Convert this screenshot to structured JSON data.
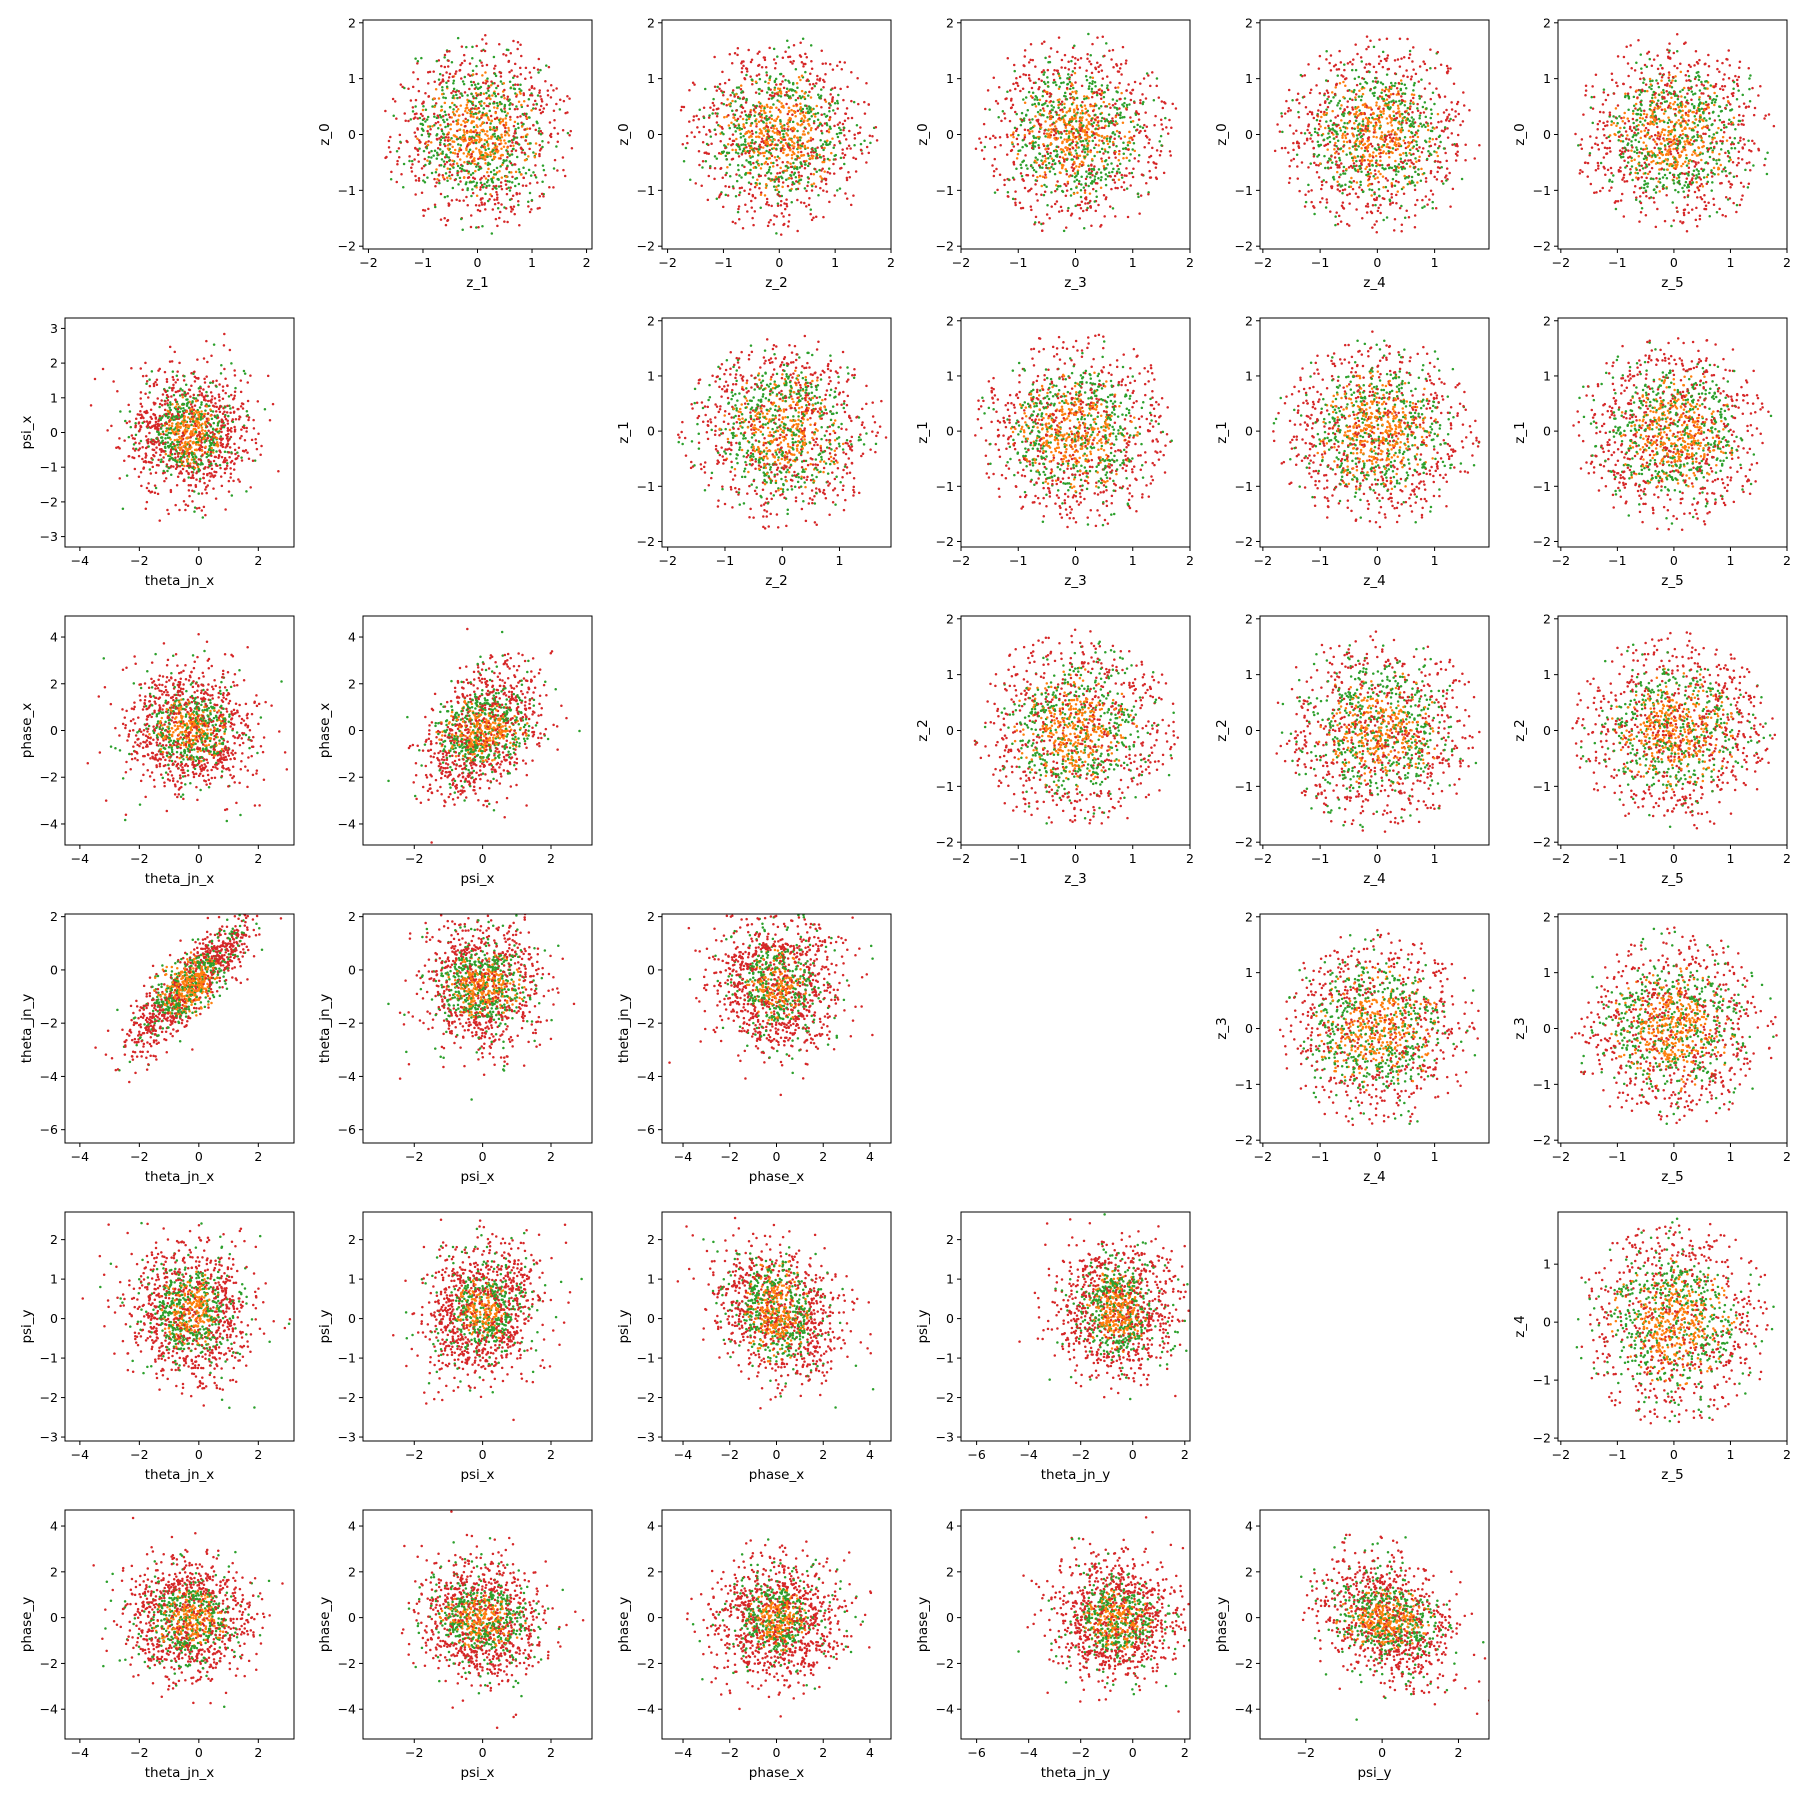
{
  "figure": {
    "colors": {
      "inner": "#ff7f0e",
      "middle": "#2ca02c",
      "outer": "#d62728"
    }
  },
  "chart_data": [
    {
      "type": "scatter",
      "row": 0,
      "col": 1,
      "xlabel": "z_1",
      "ylabel": "z_0",
      "xlim": [
        -2.1,
        2.1
      ],
      "ylim": [
        -2.05,
        2.05
      ],
      "xticks": [
        -2,
        -1,
        0,
        1,
        2
      ],
      "yticks": [
        -2,
        -1,
        0,
        1,
        2
      ],
      "dist": "corner",
      "spread": [
        0.75,
        0.75
      ],
      "rho": 0,
      "seed": 11
    },
    {
      "type": "scatter",
      "row": 0,
      "col": 2,
      "xlabel": "z_2",
      "ylabel": "z_0",
      "xlim": [
        -2.1,
        2.0
      ],
      "ylim": [
        -2.05,
        2.05
      ],
      "xticks": [
        -2,
        -1,
        0,
        1,
        2
      ],
      "yticks": [
        -2,
        -1,
        0,
        1,
        2
      ],
      "dist": "corner",
      "spread": [
        0.75,
        0.75
      ],
      "rho": 0,
      "seed": 12
    },
    {
      "type": "scatter",
      "row": 0,
      "col": 3,
      "xlabel": "z_3",
      "ylabel": "z_0",
      "xlim": [
        -2.0,
        2.0
      ],
      "ylim": [
        -2.05,
        2.05
      ],
      "xticks": [
        -2,
        -1,
        0,
        1,
        2
      ],
      "yticks": [
        -2,
        -1,
        0,
        1,
        2
      ],
      "dist": "corner",
      "spread": [
        0.75,
        0.75
      ],
      "rho": 0,
      "seed": 13
    },
    {
      "type": "scatter",
      "row": 0,
      "col": 4,
      "xlabel": "z_4",
      "ylabel": "z_0",
      "xlim": [
        -2.05,
        1.95
      ],
      "ylim": [
        -2.05,
        2.05
      ],
      "xticks": [
        -2,
        -1,
        0,
        1
      ],
      "yticks": [
        -2,
        -1,
        0,
        1,
        2
      ],
      "dist": "corner",
      "spread": [
        0.75,
        0.75
      ],
      "rho": 0,
      "seed": 14
    },
    {
      "type": "scatter",
      "row": 0,
      "col": 5,
      "xlabel": "z_5",
      "ylabel": "z_0",
      "xlim": [
        -2.05,
        2.0
      ],
      "ylim": [
        -2.05,
        2.05
      ],
      "xticks": [
        -2,
        -1,
        0,
        1,
        2
      ],
      "yticks": [
        -2,
        -1,
        0,
        1,
        2
      ],
      "dist": "corner",
      "spread": [
        0.75,
        0.75
      ],
      "rho": 0,
      "seed": 15
    },
    {
      "type": "scatter",
      "row": 1,
      "col": 0,
      "xlabel": "theta_jn_x",
      "ylabel": "psi_x",
      "xlim": [
        -4.5,
        3.2
      ],
      "ylim": [
        -3.3,
        3.3
      ],
      "xticks": [
        -4,
        -2,
        0,
        2
      ],
      "yticks": [
        -3,
        -2,
        -1,
        0,
        1,
        2,
        3
      ],
      "dist": "gauss",
      "spread": [
        1.0,
        0.85
      ],
      "rho": 0,
      "mean": [
        -0.3,
        0
      ],
      "seed": 21
    },
    {
      "type": "scatter",
      "row": 1,
      "col": 2,
      "xlabel": "z_2",
      "ylabel": "z_1",
      "xlim": [
        -2.1,
        1.9
      ],
      "ylim": [
        -2.1,
        2.05
      ],
      "xticks": [
        -2,
        -1,
        0,
        1
      ],
      "yticks": [
        -2,
        -1,
        0,
        1,
        2
      ],
      "dist": "corner",
      "spread": [
        0.75,
        0.75
      ],
      "rho": 0,
      "seed": 22
    },
    {
      "type": "scatter",
      "row": 1,
      "col": 3,
      "xlabel": "z_3",
      "ylabel": "z_1",
      "xlim": [
        -2.0,
        2.0
      ],
      "ylim": [
        -2.1,
        2.05
      ],
      "xticks": [
        -2,
        -1,
        0,
        1,
        2
      ],
      "yticks": [
        -2,
        -1,
        0,
        1,
        2
      ],
      "dist": "corner",
      "spread": [
        0.75,
        0.75
      ],
      "rho": 0,
      "seed": 23
    },
    {
      "type": "scatter",
      "row": 1,
      "col": 4,
      "xlabel": "z_4",
      "ylabel": "z_1",
      "xlim": [
        -2.05,
        1.95
      ],
      "ylim": [
        -2.1,
        2.05
      ],
      "xticks": [
        -2,
        -1,
        0,
        1
      ],
      "yticks": [
        -2,
        -1,
        0,
        1,
        2
      ],
      "dist": "corner",
      "spread": [
        0.75,
        0.75
      ],
      "rho": 0,
      "seed": 24
    },
    {
      "type": "scatter",
      "row": 1,
      "col": 5,
      "xlabel": "z_5",
      "ylabel": "z_1",
      "xlim": [
        -2.05,
        2.0
      ],
      "ylim": [
        -2.1,
        2.05
      ],
      "xticks": [
        -2,
        -1,
        0,
        1,
        2
      ],
      "yticks": [
        -2,
        -1,
        0,
        1,
        2
      ],
      "dist": "corner",
      "spread": [
        0.75,
        0.75
      ],
      "rho": 0,
      "seed": 25
    },
    {
      "type": "scatter",
      "row": 2,
      "col": 0,
      "xlabel": "theta_jn_x",
      "ylabel": "phase_x",
      "xlim": [
        -4.5,
        3.2
      ],
      "ylim": [
        -4.9,
        4.9
      ],
      "xticks": [
        -4,
        -2,
        0,
        2
      ],
      "yticks": [
        -4,
        -2,
        0,
        2,
        4
      ],
      "dist": "gauss",
      "spread": [
        1.0,
        1.3
      ],
      "rho": 0,
      "mean": [
        -0.3,
        0
      ],
      "seed": 31
    },
    {
      "type": "scatter",
      "row": 2,
      "col": 1,
      "xlabel": "psi_x",
      "ylabel": "phase_x",
      "xlim": [
        -3.5,
        3.2
      ],
      "ylim": [
        -4.9,
        4.9
      ],
      "xticks": [
        -2,
        0,
        2
      ],
      "yticks": [
        -4,
        -2,
        0,
        2,
        4
      ],
      "dist": "gauss",
      "spread": [
        0.8,
        1.3
      ],
      "rho": 0.35,
      "mean": [
        0,
        0
      ],
      "seed": 32
    },
    {
      "type": "scatter",
      "row": 2,
      "col": 3,
      "xlabel": "z_3",
      "ylabel": "z_2",
      "xlim": [
        -2.0,
        2.0
      ],
      "ylim": [
        -2.05,
        2.05
      ],
      "xticks": [
        -2,
        -1,
        0,
        1,
        2
      ],
      "yticks": [
        -2,
        -1,
        0,
        1,
        2
      ],
      "dist": "corner",
      "spread": [
        0.75,
        0.75
      ],
      "rho": 0,
      "seed": 33
    },
    {
      "type": "scatter",
      "row": 2,
      "col": 4,
      "xlabel": "z_4",
      "ylabel": "z_2",
      "xlim": [
        -2.05,
        1.95
      ],
      "ylim": [
        -2.05,
        2.05
      ],
      "xticks": [
        -2,
        -1,
        0,
        1
      ],
      "yticks": [
        -2,
        -1,
        0,
        1,
        2
      ],
      "dist": "corner",
      "spread": [
        0.75,
        0.75
      ],
      "rho": 0,
      "seed": 34
    },
    {
      "type": "scatter",
      "row": 2,
      "col": 5,
      "xlabel": "z_5",
      "ylabel": "z_2",
      "xlim": [
        -2.05,
        2.0
      ],
      "ylim": [
        -2.05,
        2.05
      ],
      "xticks": [
        -2,
        -1,
        0,
        1,
        2
      ],
      "yticks": [
        -2,
        -1,
        0,
        1,
        2
      ],
      "dist": "corner",
      "spread": [
        0.75,
        0.75
      ],
      "rho": 0,
      "seed": 35
    },
    {
      "type": "scatter",
      "row": 3,
      "col": 0,
      "xlabel": "theta_jn_x",
      "ylabel": "theta_jn_y",
      "xlim": [
        -4.5,
        3.2
      ],
      "ylim": [
        -6.5,
        2.1
      ],
      "xticks": [
        -4,
        -2,
        0,
        2
      ],
      "yticks": [
        -6,
        -4,
        -2,
        0,
        2
      ],
      "dist": "gauss",
      "spread": [
        1.0,
        1.2
      ],
      "rho": 0.85,
      "mean": [
        -0.3,
        -0.6
      ],
      "seed": 41
    },
    {
      "type": "scatter",
      "row": 3,
      "col": 1,
      "xlabel": "psi_x",
      "ylabel": "theta_jn_y",
      "xlim": [
        -3.5,
        3.2
      ],
      "ylim": [
        -6.5,
        2.1
      ],
      "xticks": [
        -2,
        0,
        2
      ],
      "yticks": [
        -6,
        -4,
        -2,
        0,
        2
      ],
      "dist": "gauss",
      "spread": [
        0.8,
        1.2
      ],
      "rho": 0,
      "mean": [
        0,
        -0.6
      ],
      "seed": 42
    },
    {
      "type": "scatter",
      "row": 3,
      "col": 2,
      "xlabel": "phase_x",
      "ylabel": "theta_jn_y",
      "xlim": [
        -4.9,
        4.9
      ],
      "ylim": [
        -6.5,
        2.1
      ],
      "xticks": [
        -4,
        -2,
        0,
        2,
        4
      ],
      "yticks": [
        -6,
        -4,
        -2,
        0,
        2
      ],
      "dist": "gauss",
      "spread": [
        1.3,
        1.2
      ],
      "rho": 0,
      "mean": [
        0,
        -0.6
      ],
      "seed": 43
    },
    {
      "type": "scatter",
      "row": 3,
      "col": 4,
      "xlabel": "z_4",
      "ylabel": "z_3",
      "xlim": [
        -2.05,
        1.95
      ],
      "ylim": [
        -2.05,
        2.05
      ],
      "xticks": [
        -2,
        -1,
        0,
        1
      ],
      "yticks": [
        -2,
        -1,
        0,
        1,
        2
      ],
      "dist": "corner",
      "spread": [
        0.75,
        0.75
      ],
      "rho": 0,
      "seed": 44
    },
    {
      "type": "scatter",
      "row": 3,
      "col": 5,
      "xlabel": "z_5",
      "ylabel": "z_3",
      "xlim": [
        -2.05,
        2.0
      ],
      "ylim": [
        -2.05,
        2.05
      ],
      "xticks": [
        -2,
        -1,
        0,
        1,
        2
      ],
      "yticks": [
        -2,
        -1,
        0,
        1,
        2
      ],
      "dist": "corner",
      "spread": [
        0.75,
        0.75
      ],
      "rho": 0,
      "seed": 45
    },
    {
      "type": "scatter",
      "row": 4,
      "col": 0,
      "xlabel": "theta_jn_x",
      "ylabel": "psi_y",
      "xlim": [
        -4.5,
        3.2
      ],
      "ylim": [
        -3.1,
        2.7
      ],
      "xticks": [
        -4,
        -2,
        0,
        2
      ],
      "yticks": [
        -3,
        -2,
        -1,
        0,
        1,
        2
      ],
      "dist": "gauss",
      "spread": [
        1.0,
        0.8
      ],
      "rho": 0,
      "mean": [
        -0.3,
        0.2
      ],
      "seed": 51
    },
    {
      "type": "scatter",
      "row": 4,
      "col": 1,
      "xlabel": "psi_x",
      "ylabel": "psi_y",
      "xlim": [
        -3.5,
        3.2
      ],
      "ylim": [
        -3.1,
        2.7
      ],
      "xticks": [
        -2,
        0,
        2
      ],
      "yticks": [
        -3,
        -2,
        -1,
        0,
        1,
        2
      ],
      "dist": "gauss",
      "spread": [
        0.8,
        0.8
      ],
      "rho": 0.15,
      "mean": [
        0,
        0.2
      ],
      "seed": 52
    },
    {
      "type": "scatter",
      "row": 4,
      "col": 2,
      "xlabel": "phase_x",
      "ylabel": "psi_y",
      "xlim": [
        -4.9,
        4.9
      ],
      "ylim": [
        -3.1,
        2.7
      ],
      "xticks": [
        -4,
        -2,
        0,
        2,
        4
      ],
      "yticks": [
        -3,
        -2,
        -1,
        0,
        1,
        2
      ],
      "dist": "gauss",
      "spread": [
        1.3,
        0.8
      ],
      "rho": -0.25,
      "mean": [
        0,
        0.2
      ],
      "seed": 53
    },
    {
      "type": "scatter",
      "row": 4,
      "col": 3,
      "xlabel": "theta_jn_y",
      "ylabel": "psi_y",
      "xlim": [
        -6.6,
        2.2
      ],
      "ylim": [
        -3.1,
        2.7
      ],
      "xticks": [
        -6,
        -4,
        -2,
        0,
        2
      ],
      "yticks": [
        -3,
        -2,
        -1,
        0,
        1,
        2
      ],
      "dist": "gauss",
      "spread": [
        1.1,
        0.8
      ],
      "rho": 0,
      "mean": [
        -0.6,
        0.2
      ],
      "seed": 54
    },
    {
      "type": "scatter",
      "row": 4,
      "col": 5,
      "xlabel": "z_5",
      "ylabel": "z_4",
      "xlim": [
        -2.05,
        2.0
      ],
      "ylim": [
        -2.05,
        1.9
      ],
      "xticks": [
        -2,
        -1,
        0,
        1,
        2
      ],
      "yticks": [
        -2,
        -1,
        0,
        1
      ],
      "dist": "corner",
      "spread": [
        0.75,
        0.75
      ],
      "rho": 0,
      "seed": 55
    },
    {
      "type": "scatter",
      "row": 5,
      "col": 0,
      "xlabel": "theta_jn_x",
      "ylabel": "phase_y",
      "xlim": [
        -4.5,
        3.2
      ],
      "ylim": [
        -5.3,
        4.7
      ],
      "xticks": [
        -4,
        -2,
        0,
        2
      ],
      "yticks": [
        -4,
        -2,
        0,
        2,
        4
      ],
      "dist": "gauss",
      "spread": [
        1.0,
        1.25
      ],
      "rho": 0,
      "mean": [
        -0.3,
        -0.1
      ],
      "seed": 61
    },
    {
      "type": "scatter",
      "row": 5,
      "col": 1,
      "xlabel": "psi_x",
      "ylabel": "phase_y",
      "xlim": [
        -3.5,
        3.2
      ],
      "ylim": [
        -5.3,
        4.7
      ],
      "xticks": [
        -2,
        0,
        2
      ],
      "yticks": [
        -4,
        -2,
        0,
        2,
        4
      ],
      "dist": "gauss",
      "spread": [
        0.8,
        1.25
      ],
      "rho": -0.1,
      "mean": [
        0,
        -0.1
      ],
      "seed": 62
    },
    {
      "type": "scatter",
      "row": 5,
      "col": 2,
      "xlabel": "phase_x",
      "ylabel": "phase_y",
      "xlim": [
        -4.9,
        4.9
      ],
      "ylim": [
        -5.3,
        4.7
      ],
      "xticks": [
        -4,
        -2,
        0,
        2,
        4
      ],
      "yticks": [
        -4,
        -2,
        0,
        2,
        4
      ],
      "dist": "gauss",
      "spread": [
        1.3,
        1.25
      ],
      "rho": 0,
      "mean": [
        0,
        -0.1
      ],
      "seed": 63
    },
    {
      "type": "scatter",
      "row": 5,
      "col": 3,
      "xlabel": "theta_jn_y",
      "ylabel": "phase_y",
      "xlim": [
        -6.6,
        2.2
      ],
      "ylim": [
        -5.3,
        4.7
      ],
      "xticks": [
        -6,
        -4,
        -2,
        0,
        2
      ],
      "yticks": [
        -4,
        -2,
        0,
        2,
        4
      ],
      "dist": "gauss",
      "spread": [
        1.1,
        1.25
      ],
      "rho": 0,
      "mean": [
        -0.6,
        -0.1
      ],
      "seed": 64
    },
    {
      "type": "scatter",
      "row": 5,
      "col": 4,
      "xlabel": "psi_y",
      "ylabel": "phase_y",
      "xlim": [
        -3.2,
        2.8
      ],
      "ylim": [
        -5.3,
        4.7
      ],
      "xticks": [
        -2,
        0,
        2
      ],
      "yticks": [
        -4,
        -2,
        0,
        2,
        4
      ],
      "dist": "gauss",
      "spread": [
        0.8,
        1.25
      ],
      "rho": -0.3,
      "mean": [
        0.1,
        -0.1
      ],
      "seed": 65
    }
  ]
}
